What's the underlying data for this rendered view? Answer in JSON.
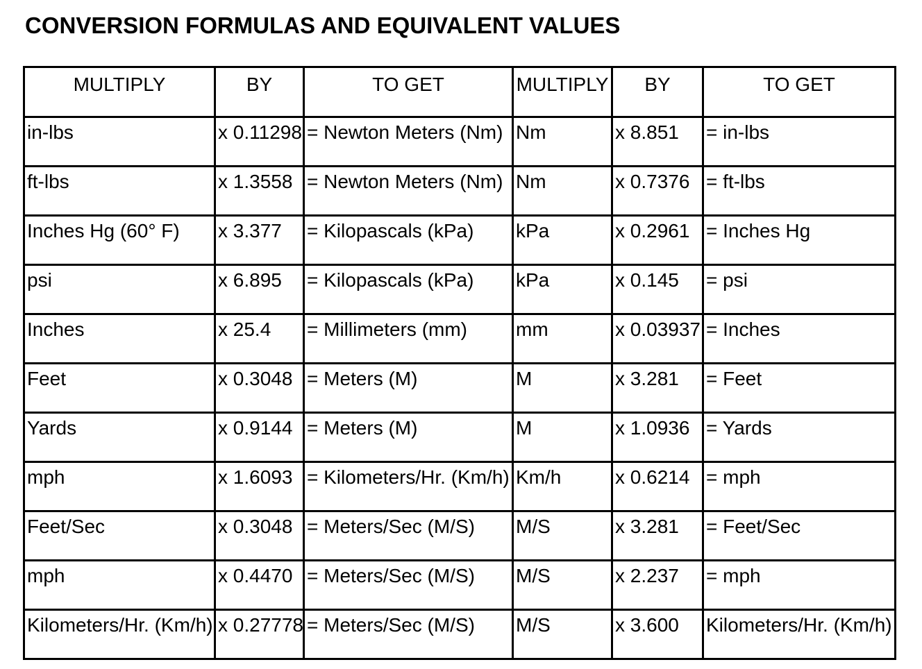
{
  "page": {
    "title": "CONVERSION FORMULAS AND EQUIVALENT VALUES"
  },
  "table": {
    "headers": [
      "MULTIPLY",
      "BY",
      "TO GET",
      "MULTIPLY",
      "BY",
      "TO GET"
    ],
    "rows": [
      [
        "in-lbs",
        "x 0.11298",
        "= Newton Meters (Nm)",
        "Nm",
        "x 8.851",
        "= in-lbs"
      ],
      [
        "ft-lbs",
        "x 1.3558",
        "= Newton Meters (Nm)",
        "Nm",
        "x 0.7376",
        "= ft-lbs"
      ],
      [
        "Inches Hg (60° F)",
        "x 3.377",
        "= Kilopascals (kPa)",
        "kPa",
        "x 0.2961",
        "= Inches Hg"
      ],
      [
        "psi",
        "x 6.895",
        "= Kilopascals (kPa)",
        "kPa",
        "x 0.145",
        "= psi"
      ],
      [
        "Inches",
        "x 25.4",
        "= Millimeters (mm)",
        "mm",
        "x 0.03937",
        "= Inches"
      ],
      [
        "Feet",
        "x 0.3048",
        "= Meters (M)",
        "M",
        "x 3.281",
        "= Feet"
      ],
      [
        "Yards",
        "x 0.9144",
        "= Meters (M)",
        "M",
        "x 1.0936",
        "= Yards"
      ],
      [
        "mph",
        "x 1.6093",
        "= Kilometers/Hr. (Km/h)",
        "Km/h",
        "x 0.6214",
        "= mph"
      ],
      [
        "Feet/Sec",
        "x 0.3048",
        "= Meters/Sec (M/S)",
        "M/S",
        "x 3.281",
        "= Feet/Sec"
      ],
      [
        "mph",
        "x 0.4470",
        "= Meters/Sec (M/S)",
        "M/S",
        "x 2.237",
        "= mph"
      ],
      [
        "Kilometers/Hr. (Km/h)",
        "x 0.27778",
        "= Meters/Sec (M/S)",
        "M/S",
        "x 3.600",
        "Kilometers/Hr. (Km/h)"
      ]
    ]
  }
}
